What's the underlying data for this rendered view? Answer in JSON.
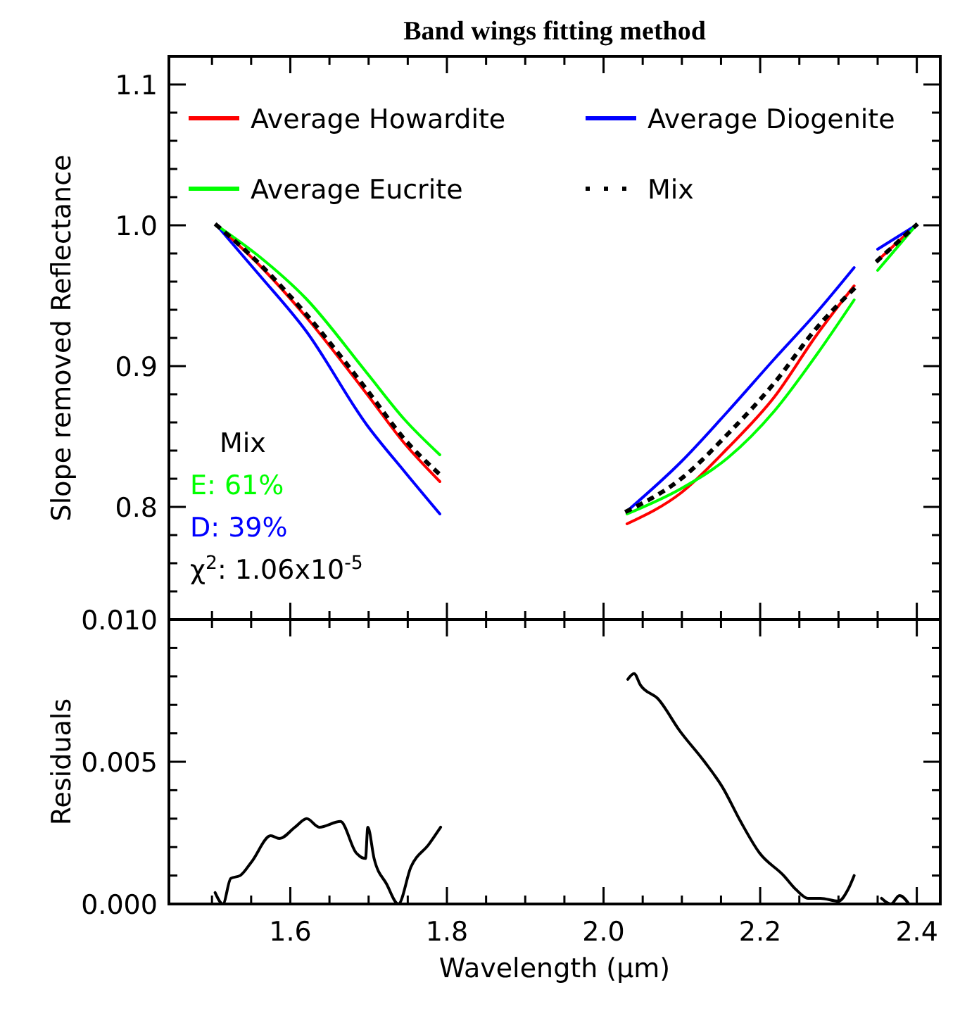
{
  "chart_data": [
    {
      "type": "line",
      "title": "Band wings fitting method",
      "ylabel": "Slope removed Reflectance",
      "legend": "top",
      "tick_labels": "y",
      "line_style": "solid",
      "xlim": [
        1.445,
        2.43
      ],
      "ylim": [
        0.72,
        1.12
      ],
      "xticks": [
        {
          "value": 1.5,
          "label": null
        },
        {
          "value": 1.55,
          "label": null
        },
        {
          "value": 1.6,
          "label": null
        },
        {
          "value": 1.65,
          "label": null
        },
        {
          "value": 1.7,
          "label": null
        },
        {
          "value": 1.75,
          "label": null
        },
        {
          "value": 1.8,
          "label": null
        },
        {
          "value": 1.85,
          "label": null
        },
        {
          "value": 1.9,
          "label": null
        },
        {
          "value": 1.95,
          "label": null
        },
        {
          "value": 2.0,
          "label": null
        },
        {
          "value": 2.05,
          "label": null
        },
        {
          "value": 2.1,
          "label": null
        },
        {
          "value": 2.15,
          "label": null
        },
        {
          "value": 2.2,
          "label": null
        },
        {
          "value": 2.25,
          "label": null
        },
        {
          "value": 2.3,
          "label": null
        },
        {
          "value": 2.35,
          "label": null
        },
        {
          "value": 2.4,
          "label": null
        }
      ],
      "yticks": [
        {
          "value": 0.74,
          "label": null
        },
        {
          "value": 0.76,
          "label": null
        },
        {
          "value": 0.78,
          "label": null
        },
        {
          "value": 0.8,
          "label": "0.8"
        },
        {
          "value": 0.82,
          "label": null
        },
        {
          "value": 0.84,
          "label": null
        },
        {
          "value": 0.86,
          "label": null
        },
        {
          "value": 0.88,
          "label": null
        },
        {
          "value": 0.9,
          "label": "0.9"
        },
        {
          "value": 0.92,
          "label": null
        },
        {
          "value": 0.94,
          "label": null
        },
        {
          "value": 0.96,
          "label": null
        },
        {
          "value": 0.98,
          "label": null
        },
        {
          "value": 1.0,
          "label": "1.0"
        },
        {
          "value": 1.02,
          "label": null
        },
        {
          "value": 1.04,
          "label": null
        },
        {
          "value": 1.06,
          "label": null
        },
        {
          "value": 1.08,
          "label": null
        },
        {
          "value": 1.1,
          "label": "1.1"
        }
      ],
      "series": [
        {
          "name": "Average Howardite",
          "color": "#ff0000",
          "x": [
            1.506,
            1.56,
            1.62,
            1.698,
            1.746,
            1.791
          ],
          "values": [
            1.0,
            0.972,
            0.935,
            0.88,
            0.845,
            0.818
          ]
        },
        {
          "name": "Average Diogenite",
          "color": "#0000ff",
          "x": [
            1.506,
            1.56,
            1.62,
            1.698,
            1.746,
            1.791
          ],
          "values": [
            1.0,
            0.965,
            0.925,
            0.858,
            0.825,
            0.795
          ]
        },
        {
          "name": "Average Eucrite",
          "color": "#00ff00",
          "x": [
            1.506,
            1.56,
            1.62,
            1.698,
            1.746,
            1.791
          ],
          "values": [
            1.0,
            0.978,
            0.948,
            0.895,
            0.862,
            0.837
          ]
        },
        {
          "name": "Mix",
          "color": "#000000",
          "line_style": "dotted",
          "x": [
            1.506,
            1.56,
            1.62,
            1.698,
            1.746,
            1.791
          ],
          "values": [
            1.0,
            0.973,
            0.937,
            0.883,
            0.848,
            0.823
          ]
        },
        {
          "color": "#ff0000",
          "x": [
            2.03,
            2.099,
            2.159,
            2.218,
            2.272,
            2.32
          ],
          "values": [
            0.788,
            0.81,
            0.842,
            0.878,
            0.922,
            0.957
          ]
        },
        {
          "color": "#0000ff",
          "x": [
            2.03,
            2.099,
            2.159,
            2.218,
            2.272,
            2.32
          ],
          "values": [
            0.797,
            0.832,
            0.868,
            0.905,
            0.938,
            0.97
          ]
        },
        {
          "color": "#00ff00",
          "x": [
            2.03,
            2.099,
            2.159,
            2.218,
            2.272,
            2.32
          ],
          "values": [
            0.795,
            0.813,
            0.835,
            0.868,
            0.908,
            0.947
          ]
        },
        {
          "color": "#000000",
          "line_style": "dotted",
          "x": [
            2.03,
            2.099,
            2.159,
            2.218,
            2.272,
            2.32
          ],
          "values": [
            0.797,
            0.82,
            0.852,
            0.888,
            0.927,
            0.955
          ]
        },
        {
          "color": "#ff0000",
          "x": [
            2.35,
            2.399
          ],
          "values": [
            0.975,
            1.0
          ]
        },
        {
          "color": "#0000ff",
          "x": [
            2.35,
            2.399
          ],
          "values": [
            0.983,
            1.0
          ]
        },
        {
          "color": "#00ff00",
          "x": [
            2.35,
            2.399
          ],
          "values": [
            0.968,
            1.0
          ]
        },
        {
          "color": "#000000",
          "line_style": "dotted",
          "x": [
            2.35,
            2.399
          ],
          "values": [
            0.975,
            1.0
          ]
        }
      ],
      "annotations": [
        "Mix",
        "E: 61%",
        "D: 39%",
        "χ$^{2}$: 1.06x10$^{-5}$"
      ]
    },
    {
      "type": "line",
      "xlabel": "Wavelength (μm)",
      "ylabel": "Residuals",
      "legend": false,
      "xlim": [
        1.445,
        2.43
      ],
      "ylim": [
        0,
        0.01
      ],
      "xticks": [
        {
          "value": 1.5,
          "label": null
        },
        {
          "value": 1.55,
          "label": null
        },
        {
          "value": 1.6,
          "label": "1.6"
        },
        {
          "value": 1.65,
          "label": null
        },
        {
          "value": 1.7,
          "label": null
        },
        {
          "value": 1.75,
          "label": null
        },
        {
          "value": 1.8,
          "label": "1.8"
        },
        {
          "value": 1.85,
          "label": null
        },
        {
          "value": 1.9,
          "label": null
        },
        {
          "value": 1.95,
          "label": null
        },
        {
          "value": 2.0,
          "label": "2.0"
        },
        {
          "value": 2.05,
          "label": null
        },
        {
          "value": 2.1,
          "label": null
        },
        {
          "value": 2.15,
          "label": null
        },
        {
          "value": 2.2,
          "label": "2.2"
        },
        {
          "value": 2.25,
          "label": null
        },
        {
          "value": 2.3,
          "label": null
        },
        {
          "value": 2.35,
          "label": null
        },
        {
          "value": 2.4,
          "label": "2.4"
        }
      ],
      "yticks": [
        {
          "value": 0,
          "label": "0.000"
        },
        {
          "value": 0.001,
          "label": null
        },
        {
          "value": 0.002,
          "label": null
        },
        {
          "value": 0.003,
          "label": null
        },
        {
          "value": 0.004,
          "label": null
        },
        {
          "value": 0.005,
          "label": "0.005"
        },
        {
          "value": 0.006,
          "label": null
        },
        {
          "value": 0.007,
          "label": null
        },
        {
          "value": 0.008,
          "label": null
        },
        {
          "value": 0.009,
          "label": null
        },
        {
          "value": 0.01,
          "label": "0.010"
        }
      ],
      "series": [
        {
          "color": "#000000",
          "x": [
            1.504,
            1.514,
            1.524,
            1.536,
            1.551,
            1.575,
            1.586,
            1.606,
            1.621,
            1.637,
            1.664,
            1.684,
            1.696,
            1.699,
            1.707,
            1.723,
            1.738,
            1.754,
            1.777,
            1.792
          ],
          "values": [
            0.0004,
            0,
            0.0009,
            0.001,
            0.0015,
            0.0024,
            0.0023,
            0.0027,
            0.003,
            0.0027,
            0.0029,
            0.0018,
            0.0016,
            0.0027,
            0.0016,
            0.0007,
            0,
            0.0013,
            0.0021,
            0.0027
          ]
        },
        {
          "color": "#000000",
          "x": [
            2.031,
            2.039,
            2.047,
            2.07,
            2.097,
            2.129,
            2.152,
            2.175,
            2.199,
            2.23,
            2.246,
            2.261,
            2.277,
            2.3,
            2.312,
            2.32
          ],
          "values": [
            0.0079,
            0.0081,
            0.0077,
            0.0072,
            0.0061,
            0.005,
            0.0041,
            0.0029,
            0.0018,
            0.001,
            0.0005,
            0.0002,
            0.0002,
            0.0001,
            0.0005,
            0.001
          ]
        },
        {
          "color": "#000000",
          "x": [
            2.355,
            2.367,
            2.378,
            2.39
          ],
          "values": [
            0.0002,
            0,
            0.0003,
            0
          ]
        }
      ]
    }
  ]
}
